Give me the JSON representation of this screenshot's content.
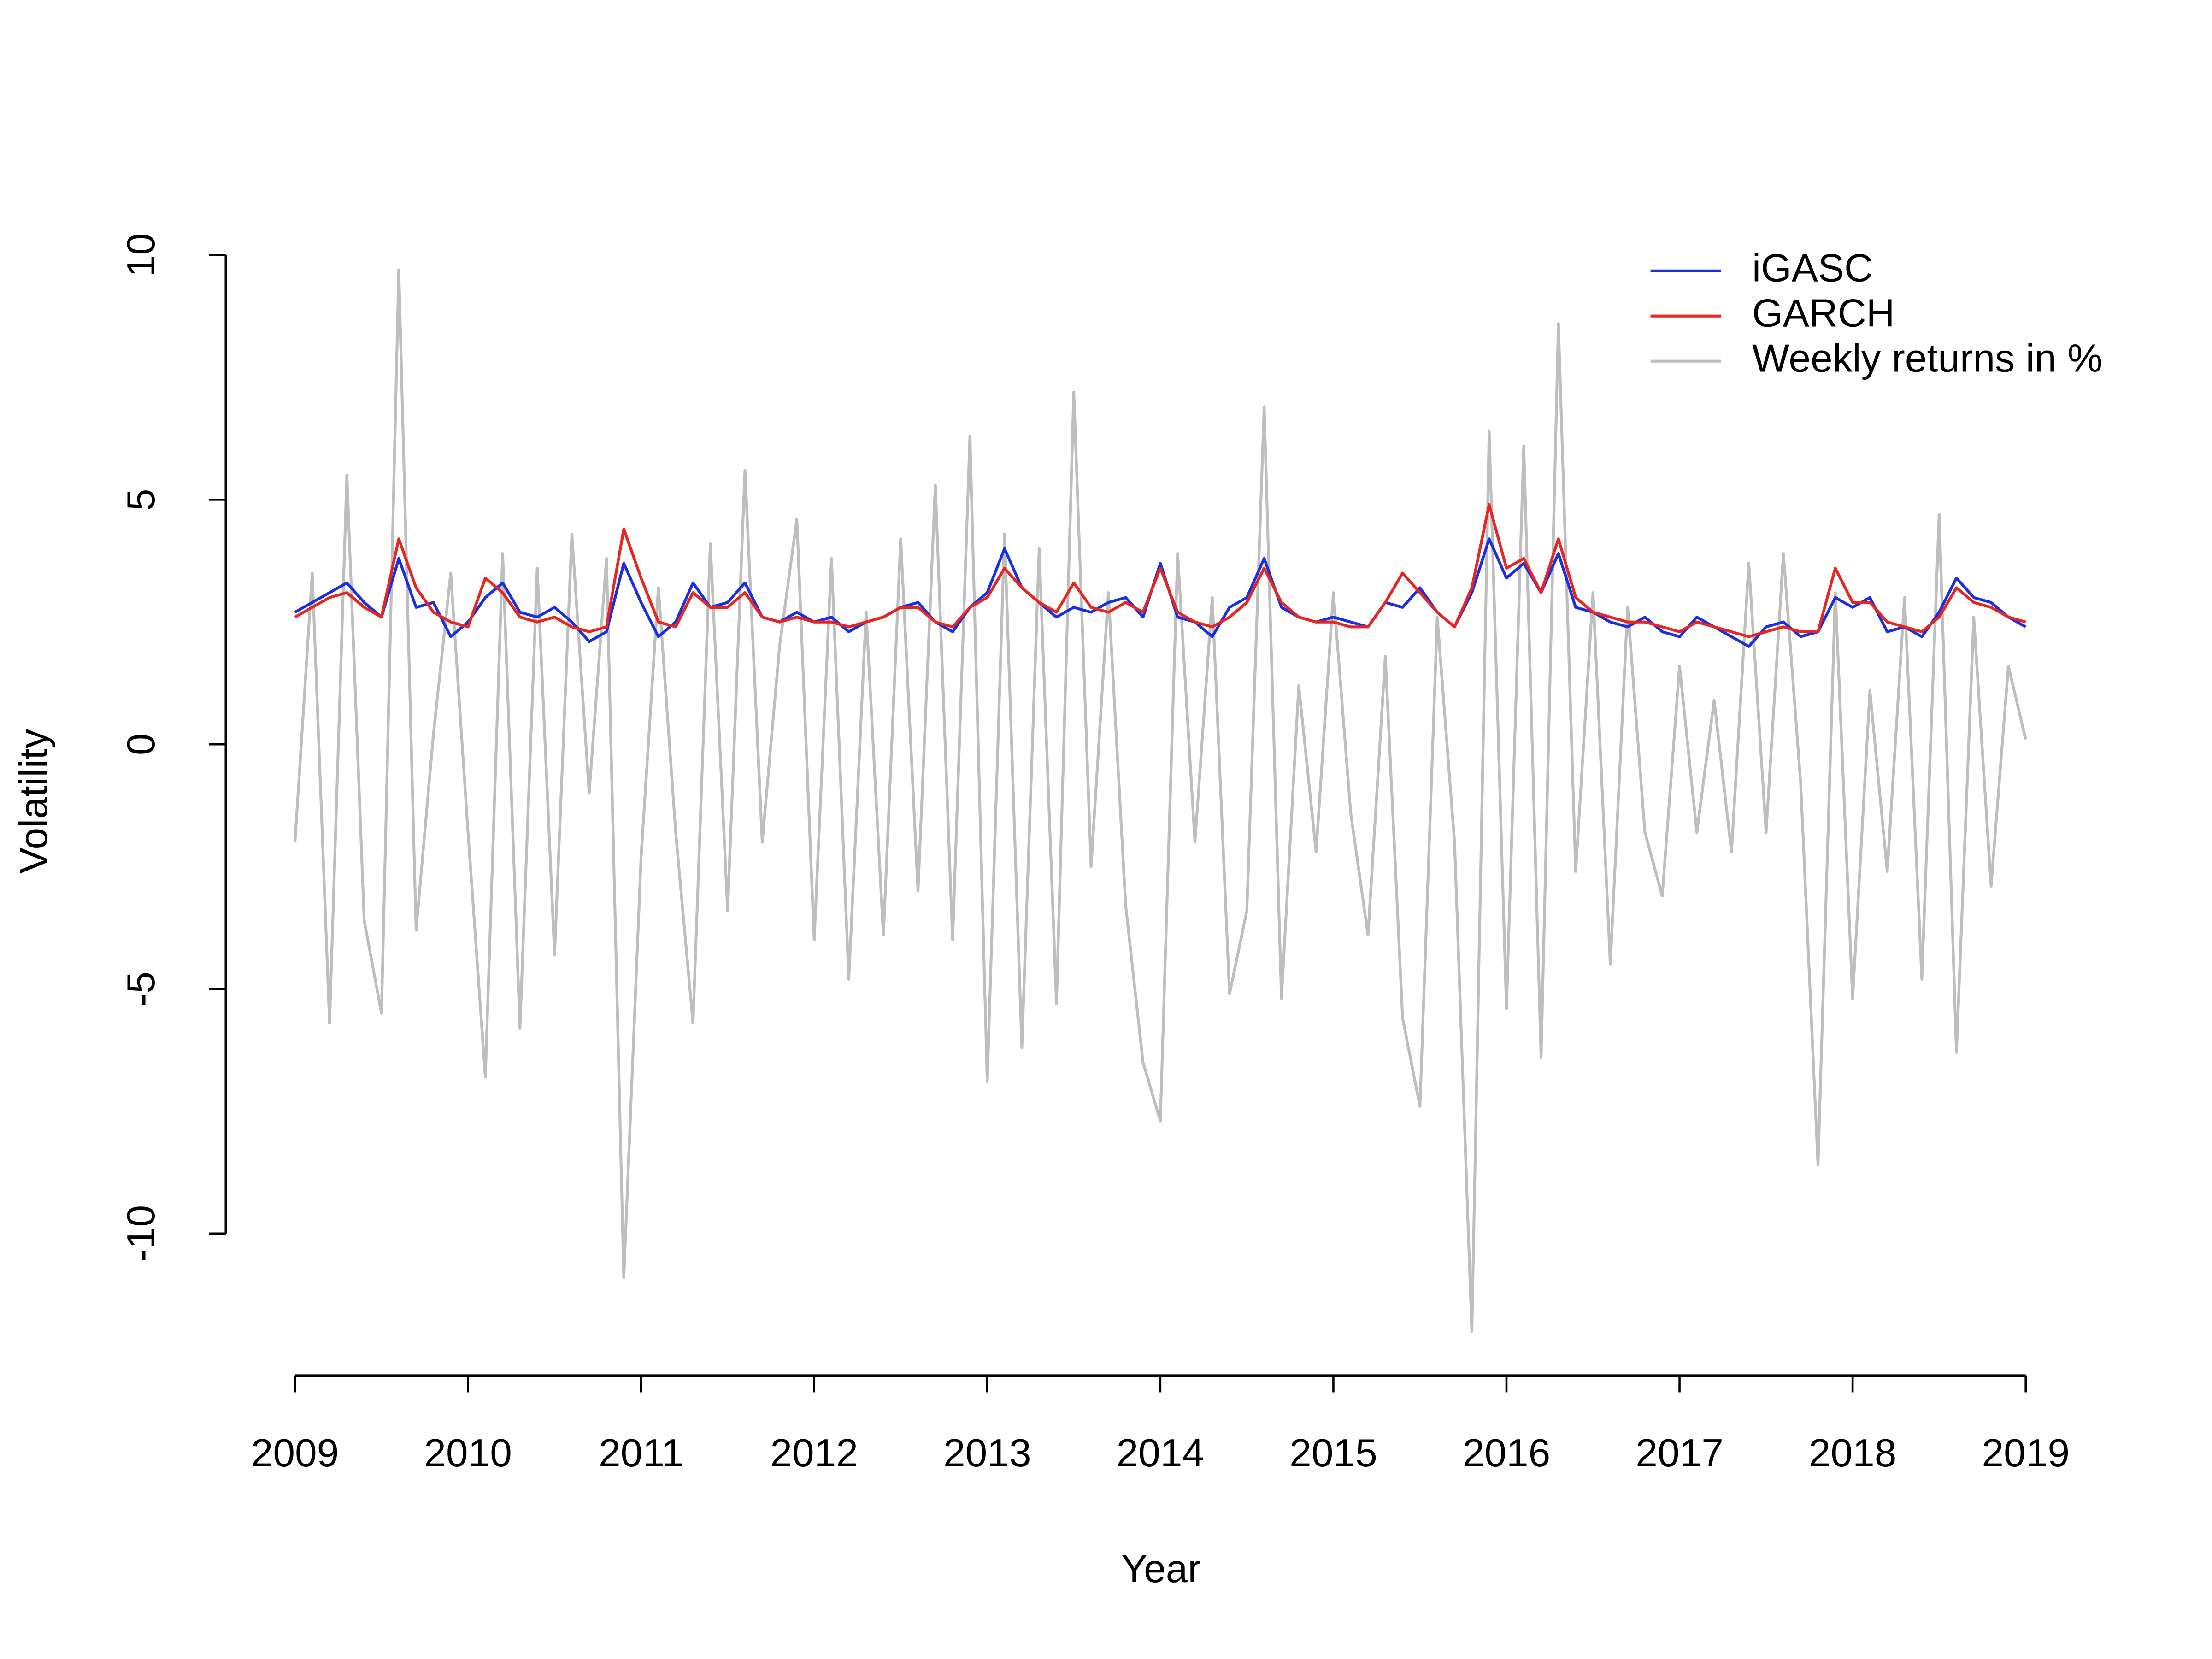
{
  "chart_data": {
    "type": "line",
    "xlabel": "Year",
    "ylabel": "Volatility",
    "x": [
      2009.0,
      2009.1,
      2009.2,
      2009.3,
      2009.4,
      2009.5,
      2009.6,
      2009.7,
      2009.8,
      2009.9,
      2010.0,
      2010.1,
      2010.2,
      2010.3,
      2010.4,
      2010.5,
      2010.6,
      2010.7,
      2010.8,
      2010.9,
      2011.0,
      2011.1,
      2011.2,
      2011.3,
      2011.4,
      2011.5,
      2011.6,
      2011.7,
      2011.8,
      2011.9,
      2012.0,
      2012.1,
      2012.2,
      2012.3,
      2012.4,
      2012.5,
      2012.6,
      2012.7,
      2012.8,
      2012.9,
      2013.0,
      2013.1,
      2013.2,
      2013.3,
      2013.4,
      2013.5,
      2013.6,
      2013.7,
      2013.8,
      2013.9,
      2014.0,
      2014.1,
      2014.2,
      2014.3,
      2014.4,
      2014.5,
      2014.6,
      2014.7,
      2014.8,
      2014.9,
      2015.0,
      2015.1,
      2015.2,
      2015.3,
      2015.4,
      2015.5,
      2015.6,
      2015.7,
      2015.8,
      2015.9,
      2016.0,
      2016.1,
      2016.2,
      2016.3,
      2016.4,
      2016.5,
      2016.6,
      2016.7,
      2016.8,
      2016.9,
      2017.0,
      2017.1,
      2017.2,
      2017.3,
      2017.4,
      2017.5,
      2017.6,
      2017.7,
      2017.8,
      2017.9,
      2018.0,
      2018.1,
      2018.2,
      2018.3,
      2018.4,
      2018.5,
      2018.6,
      2018.7,
      2018.8,
      2018.9,
      2019.0
    ],
    "series": [
      {
        "name": "Weekly returns in %",
        "color": "#bebebe",
        "values": [
          -2.0,
          3.5,
          -5.7,
          5.5,
          -3.6,
          -5.5,
          9.7,
          -3.8,
          0.2,
          3.5,
          -1.8,
          -6.8,
          3.9,
          -5.8,
          3.6,
          -4.3,
          4.3,
          -1.0,
          3.8,
          -10.9,
          -2.3,
          3.2,
          -1.8,
          -5.7,
          4.1,
          -3.4,
          5.6,
          -2.0,
          2.0,
          4.6,
          -4.0,
          3.8,
          -4.8,
          2.7,
          -3.9,
          4.2,
          -3.0,
          5.3,
          -4.0,
          6.3,
          -6.9,
          4.3,
          -6.2,
          4.0,
          -5.3,
          7.2,
          -2.5,
          3.1,
          -3.3,
          -6.5,
          -7.7,
          3.9,
          -2.0,
          3.0,
          -5.1,
          -3.4,
          6.9,
          -5.2,
          1.2,
          -2.2,
          3.1,
          -1.4,
          -3.9,
          1.8,
          -5.6,
          -7.4,
          2.6,
          -2.0,
          -12.0,
          6.4,
          -5.4,
          6.1,
          -6.4,
          8.6,
          -2.6,
          3.1,
          -4.5,
          2.8,
          -1.8,
          -3.1,
          1.6,
          -1.8,
          0.9,
          -2.2,
          3.7,
          -1.8,
          3.9,
          -0.8,
          -8.6,
          3.1,
          -5.2,
          1.1,
          -2.6,
          3.0,
          -4.8,
          4.7,
          -6.3,
          2.6,
          -2.9,
          1.6,
          0.1
        ]
      },
      {
        "name": "iGASC",
        "color": "#1a2fe0",
        "values": [
          2.7,
          2.9,
          3.1,
          3.3,
          2.9,
          2.6,
          3.8,
          2.8,
          2.9,
          2.2,
          2.5,
          3.0,
          3.3,
          2.7,
          2.6,
          2.8,
          2.5,
          2.1,
          2.3,
          3.7,
          2.9,
          2.2,
          2.5,
          3.3,
          2.8,
          2.9,
          3.3,
          2.6,
          2.5,
          2.7,
          2.5,
          2.6,
          2.3,
          2.5,
          2.6,
          2.8,
          2.9,
          2.5,
          2.3,
          2.8,
          3.1,
          4.0,
          3.2,
          2.9,
          2.6,
          2.8,
          2.7,
          2.9,
          3.0,
          2.6,
          3.7,
          2.6,
          2.5,
          2.2,
          2.8,
          3.0,
          3.8,
          2.8,
          2.6,
          2.5,
          2.6,
          2.5,
          2.4,
          2.9,
          2.8,
          3.2,
          2.7,
          2.4,
          3.1,
          4.2,
          3.4,
          3.7,
          3.1,
          3.9,
          2.8,
          2.7,
          2.5,
          2.4,
          2.6,
          2.3,
          2.2,
          2.6,
          2.4,
          2.2,
          2.0,
          2.4,
          2.5,
          2.2,
          2.3,
          3.0,
          2.8,
          3.0,
          2.3,
          2.4,
          2.2,
          2.7,
          3.4,
          3.0,
          2.9,
          2.6,
          2.4
        ]
      },
      {
        "name": "GARCH",
        "color": "#e8251f",
        "values": [
          2.6,
          2.8,
          3.0,
          3.1,
          2.8,
          2.6,
          4.2,
          3.2,
          2.7,
          2.5,
          2.4,
          3.4,
          3.1,
          2.6,
          2.5,
          2.6,
          2.4,
          2.3,
          2.4,
          4.4,
          3.4,
          2.5,
          2.4,
          3.1,
          2.8,
          2.8,
          3.1,
          2.6,
          2.5,
          2.6,
          2.5,
          2.5,
          2.4,
          2.5,
          2.6,
          2.8,
          2.8,
          2.5,
          2.4,
          2.8,
          3.0,
          3.6,
          3.2,
          2.9,
          2.7,
          3.3,
          2.8,
          2.7,
          2.9,
          2.7,
          3.6,
          2.7,
          2.5,
          2.4,
          2.6,
          2.9,
          3.6,
          2.9,
          2.6,
          2.5,
          2.5,
          2.4,
          2.4,
          2.9,
          3.5,
          3.1,
          2.7,
          2.4,
          3.2,
          4.9,
          3.6,
          3.8,
          3.1,
          4.2,
          3.0,
          2.7,
          2.6,
          2.5,
          2.5,
          2.4,
          2.3,
          2.5,
          2.4,
          2.3,
          2.2,
          2.3,
          2.4,
          2.3,
          2.3,
          3.6,
          2.9,
          2.9,
          2.5,
          2.4,
          2.3,
          2.6,
          3.2,
          2.9,
          2.8,
          2.6,
          2.5
        ]
      }
    ],
    "xlim": [
      2008.6,
      2019.4
    ],
    "xticks": [
      2009,
      2010,
      2011,
      2012,
      2013,
      2014,
      2015,
      2016,
      2017,
      2018,
      2019
    ],
    "ylim": [
      -12.9,
      10.6
    ],
    "yticks": [
      -10,
      -5,
      0,
      5,
      10
    ],
    "legend": "top-right"
  }
}
